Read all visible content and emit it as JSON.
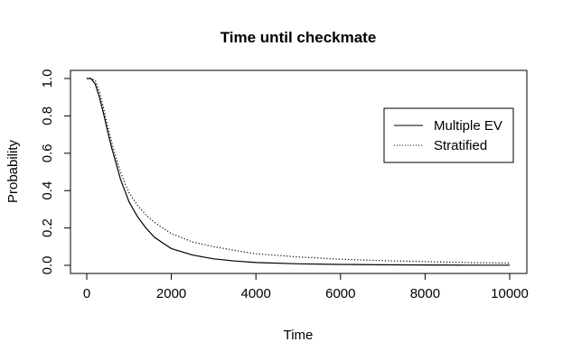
{
  "chart_data": {
    "type": "line",
    "title": "Time until checkmate",
    "xlabel": "Time",
    "ylabel": "Probability",
    "xlim": [
      0,
      10000
    ],
    "ylim": [
      0,
      1
    ],
    "x_ticks": [
      0,
      2000,
      4000,
      6000,
      8000,
      10000
    ],
    "x_tick_labels": [
      "0",
      "2000",
      "4000",
      "6000",
      "8000",
      "10000"
    ],
    "y_ticks": [
      0,
      0.2,
      0.4,
      0.6,
      0.8,
      1
    ],
    "y_tick_labels": [
      "0.0",
      "0.2",
      "0.4",
      "0.6",
      "0.8",
      "1.0"
    ],
    "grid": false,
    "legend_position": "top-right",
    "series": [
      {
        "name": "Multiple EV",
        "line_style": "solid",
        "color": "#000000",
        "x": [
          0,
          100,
          200,
          300,
          400,
          500,
          600,
          700,
          800,
          900,
          1000,
          1200,
          1400,
          1600,
          1800,
          2000,
          2500,
          3000,
          3500,
          4000,
          5000,
          6000,
          7000,
          8000,
          9000,
          10000
        ],
        "y": [
          1.0,
          1.0,
          0.97,
          0.9,
          0.81,
          0.71,
          0.62,
          0.54,
          0.46,
          0.4,
          0.34,
          0.26,
          0.2,
          0.15,
          0.12,
          0.09,
          0.055,
          0.035,
          0.023,
          0.015,
          0.008,
          0.005,
          0.003,
          0.002,
          0.001,
          0.001
        ]
      },
      {
        "name": "Stratified",
        "line_style": "dotted",
        "color": "#000000",
        "x": [
          0,
          100,
          200,
          300,
          400,
          500,
          600,
          700,
          800,
          900,
          1000,
          1200,
          1400,
          1600,
          1800,
          2000,
          2500,
          3000,
          3500,
          4000,
          5000,
          6000,
          7000,
          8000,
          9000,
          10000
        ],
        "y": [
          1.0,
          1.0,
          0.99,
          0.93,
          0.84,
          0.74,
          0.65,
          0.57,
          0.5,
          0.44,
          0.39,
          0.32,
          0.27,
          0.23,
          0.2,
          0.17,
          0.125,
          0.1,
          0.08,
          0.062,
          0.045,
          0.033,
          0.025,
          0.02,
          0.015,
          0.012
        ]
      }
    ]
  }
}
